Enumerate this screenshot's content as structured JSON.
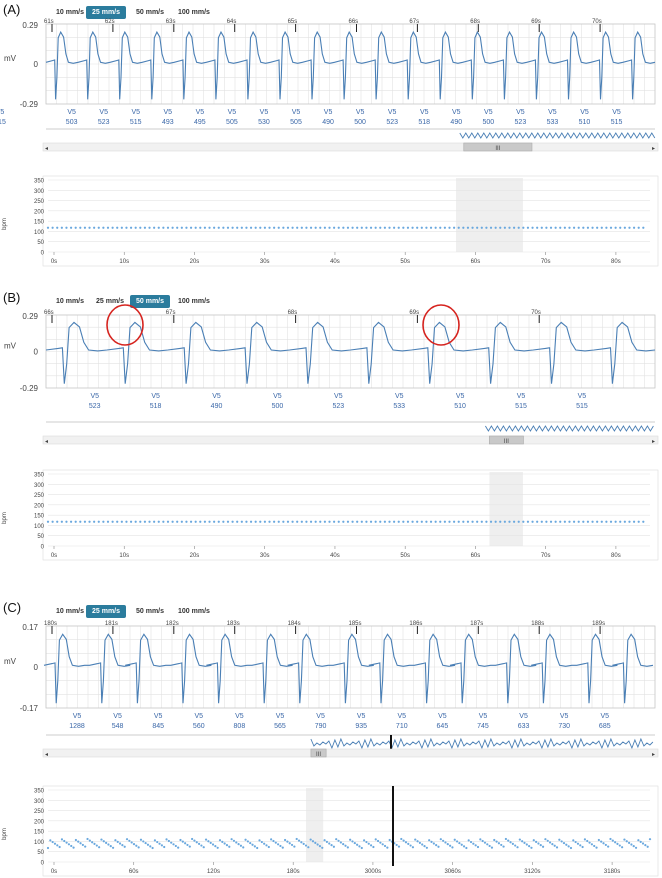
{
  "panels": [
    {
      "label": "(A)",
      "speeds": [
        "10 mm/s",
        "25 mm/s",
        "50 mm/s",
        "100 mm/s"
      ],
      "active_speed": 1,
      "ecg": {
        "ylabel": "mV",
        "y_ticks": [
          "0.29",
          "0",
          "-0.29"
        ],
        "time_marks": [
          "61s",
          "62s",
          "63s",
          "64s",
          "65s",
          "66s",
          "67s",
          "68s",
          "69s",
          "70s"
        ],
        "lead": "V5",
        "intervals": [
          "503",
          "523",
          "515",
          "493",
          "495",
          "505",
          "530",
          "505",
          "490",
          "500",
          "523",
          "518",
          "490",
          "500",
          "523",
          "533",
          "510",
          "515",
          "515"
        ],
        "beats": 19
      },
      "navigator": {
        "handle_glyph": "III",
        "window": [
          0.686,
          0.798
        ]
      },
      "hr_chart": {
        "type": "scatter",
        "ylabel": "bpm",
        "y_ticks": [
          "350",
          "300",
          "250",
          "200",
          "150",
          "100",
          "50",
          "0"
        ],
        "x_ticks": [
          "0s",
          "10s",
          "20s",
          "30s",
          "40s",
          "50s",
          "60s",
          "70s",
          "80s"
        ],
        "ylim": [
          0,
          350
        ],
        "xlim": [
          0,
          90
        ],
        "highlight": [
          61,
          71
        ],
        "hr_value": 118,
        "x_range": [
          0,
          89
        ]
      }
    },
    {
      "label": "(B)",
      "speeds": [
        "10 mm/s",
        "25 mm/s",
        "50 mm/s",
        "100 mm/s"
      ],
      "active_speed": 2,
      "ecg": {
        "ylabel": "mV",
        "y_ticks": [
          "0.29",
          "0",
          "-0.29"
        ],
        "time_marks": [
          "66s",
          "67s",
          "68s",
          "69s",
          "70s"
        ],
        "lead": "V5",
        "intervals": [
          "523",
          "518",
          "490",
          "500",
          "523",
          "533",
          "510",
          "515",
          "515"
        ],
        "beats": 10
      },
      "navigator": {
        "handle_glyph": "III",
        "window": [
          0.728,
          0.784
        ]
      },
      "hr_chart": {
        "type": "scatter",
        "ylabel": "bpm",
        "y_ticks": [
          "350",
          "300",
          "250",
          "200",
          "150",
          "100",
          "50",
          "0"
        ],
        "x_ticks": [
          "0s",
          "10s",
          "20s",
          "30s",
          "40s",
          "50s",
          "60s",
          "70s",
          "80s"
        ],
        "ylim": [
          0,
          350
        ],
        "xlim": [
          0,
          90
        ],
        "highlight": [
          66,
          71
        ],
        "hr_value": 118,
        "x_range": [
          0,
          89
        ]
      }
    },
    {
      "label": "(C)",
      "speeds": [
        "10 mm/s",
        "25 mm/s",
        "50 mm/s",
        "100 mm/s"
      ],
      "active_speed": 1,
      "ecg": {
        "ylabel": "mV",
        "y_ticks": [
          "0.17",
          "0",
          "-0.17"
        ],
        "time_marks": [
          "180s",
          "181s",
          "182s",
          "183s",
          "184s",
          "185s",
          "186s",
          "187s",
          "188s",
          "189s"
        ],
        "lead": "V5",
        "intervals": [
          "1288",
          "548",
          "845",
          "560",
          "808",
          "565",
          "790",
          "935",
          "710",
          "645",
          "745",
          "633",
          "730",
          "685"
        ],
        "beats": 15
      },
      "navigator": {
        "handle_glyph": "III",
        "window": [
          0.435,
          0.46
        ]
      },
      "hr_chart": {
        "type": "scatter",
        "ylabel": "bpm",
        "y_ticks": [
          "350",
          "300",
          "250",
          "200",
          "150",
          "100",
          "50",
          "0"
        ],
        "x_ticks": [
          "0s",
          "60s",
          "120s",
          "180s",
          "3000s",
          "3060s",
          "3120s",
          "3180s"
        ],
        "ylim": [
          0,
          350
        ],
        "xlim": [
          0,
          7
        ],
        "highlight": [
          3.0,
          3.2
        ],
        "hr_value": 90,
        "x_range": [
          0,
          7
        ]
      }
    }
  ]
}
